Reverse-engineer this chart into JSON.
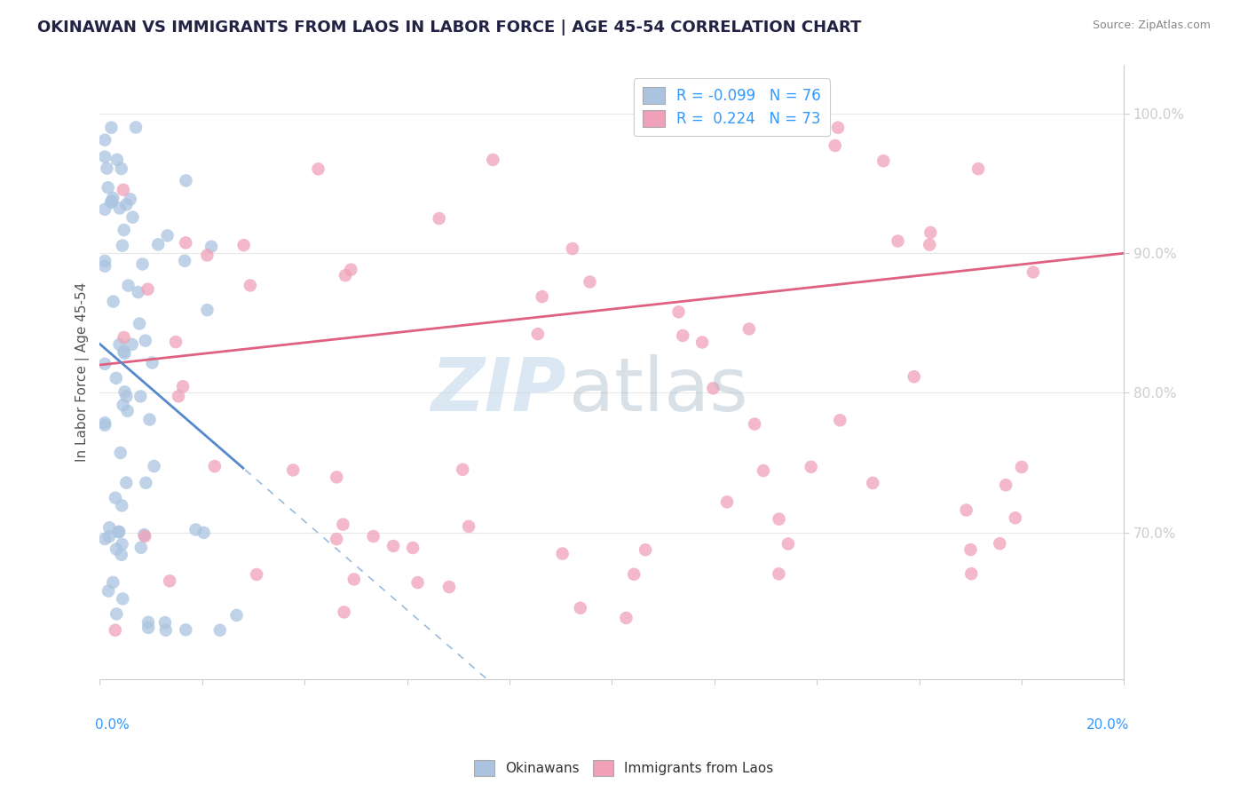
{
  "title": "OKINAWAN VS IMMIGRANTS FROM LAOS IN LABOR FORCE | AGE 45-54 CORRELATION CHART",
  "source_text": "Source: ZipAtlas.com",
  "ylabel": "In Labor Force | Age 45-54",
  "ylabel_right_ticks": [
    "70.0%",
    "80.0%",
    "90.0%",
    "100.0%"
  ],
  "ylabel_right_values": [
    0.7,
    0.8,
    0.9,
    1.0
  ],
  "xlim": [
    0.0,
    0.2
  ],
  "ylim": [
    0.595,
    1.035
  ],
  "legend_r_blue": "-0.099",
  "legend_n_blue": "76",
  "legend_r_pink": "0.224",
  "legend_n_pink": "73",
  "blue_color": "#aac4e0",
  "pink_color": "#f0a0b8",
  "trend_blue_solid_color": "#5588cc",
  "trend_blue_dash_color": "#99bbdd",
  "trend_pink_color": "#e06080",
  "title_color": "#222244",
  "source_color": "#888888",
  "ylabel_color": "#555555",
  "tick_label_color": "#3399ff",
  "axis_color": "#cccccc",
  "grid_color": "#e8e8e8",
  "watermark_zip_color": "#c5d8ee",
  "watermark_atlas_color": "#aabbcc"
}
